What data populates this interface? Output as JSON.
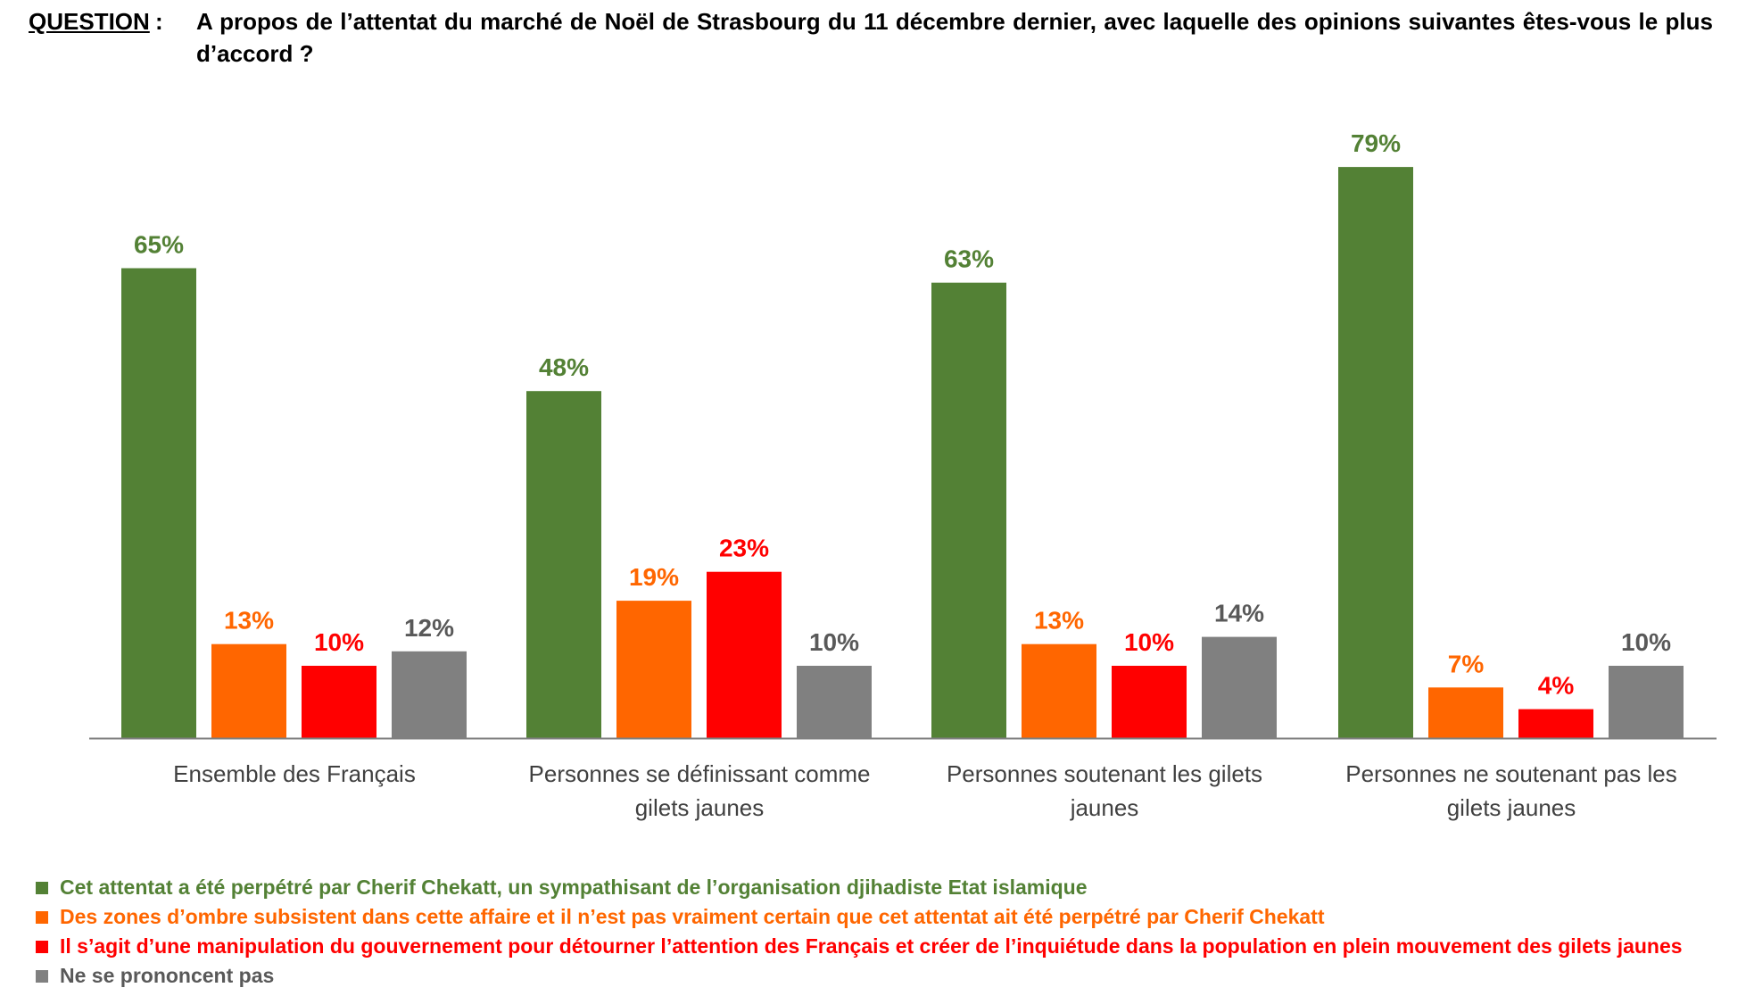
{
  "header": {
    "label": "QUESTION",
    "colon": ":",
    "text": "A propos de l’attentat du marché de Noël de Strasbourg du 11 décembre dernier, avec laquelle des opinions suivantes êtes-vous le plus d’accord ?"
  },
  "chart_data": {
    "type": "bar",
    "title": "",
    "xlabel": "",
    "ylabel": "",
    "ylim": [
      0,
      80
    ],
    "grid": false,
    "legend_position": "bottom",
    "categories": [
      [
        "Ensemble des Français"
      ],
      [
        "Personnes se définissant comme",
        "gilets jaunes"
      ],
      [
        "Personnes soutenant les gilets",
        "jaunes"
      ],
      [
        "Personnes ne soutenant pas les",
        "gilets jaunes"
      ]
    ],
    "series": [
      {
        "name": "Cet attentat a été perpétré par Cherif Chekatt, un sympathisant de l’organisation djihadiste Etat islamique",
        "color": "#538135",
        "values": [
          65,
          48,
          63,
          79
        ],
        "labels": [
          "65%",
          "48%",
          "63%",
          "79%"
        ]
      },
      {
        "name": "Des zones d’ombre subsistent dans cette affaire et il n’est pas vraiment certain que cet attentat ait été perpétré par Cherif Chekatt",
        "color": "#FF6600",
        "values": [
          13,
          19,
          13,
          7
        ],
        "labels": [
          "13%",
          "19%",
          "13%",
          "7%"
        ]
      },
      {
        "name": "Il s’agit d’une manipulation du gouvernement pour détourner l’attention des Français et créer de l’inquiétude dans la population en plein mouvement des gilets jaunes",
        "color": "#FF0000",
        "values": [
          10,
          23,
          10,
          4
        ],
        "labels": [
          "10%",
          "23%",
          "10%",
          "4%"
        ]
      },
      {
        "name": "Ne se prononcent pas",
        "color": "#808080",
        "label_color": "#595959",
        "values": [
          12,
          10,
          14,
          10
        ],
        "labels": [
          "12%",
          "10%",
          "14%",
          "10%"
        ]
      }
    ]
  }
}
